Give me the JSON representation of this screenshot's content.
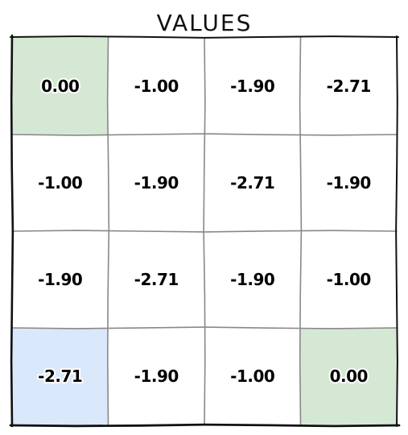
{
  "title": "VALUES",
  "grid": {
    "rows": 4,
    "cols": 4,
    "cells": [
      [
        {
          "value": "0.00",
          "fill": "#d5e8d4"
        },
        {
          "value": "-1.00",
          "fill": "#ffffff"
        },
        {
          "value": "-1.90",
          "fill": "#ffffff"
        },
        {
          "value": "-2.71",
          "fill": "#ffffff"
        }
      ],
      [
        {
          "value": "-1.00",
          "fill": "#ffffff"
        },
        {
          "value": "-1.90",
          "fill": "#ffffff"
        },
        {
          "value": "-2.71",
          "fill": "#ffffff"
        },
        {
          "value": "-1.90",
          "fill": "#ffffff"
        }
      ],
      [
        {
          "value": "-1.90",
          "fill": "#ffffff"
        },
        {
          "value": "-2.71",
          "fill": "#ffffff"
        },
        {
          "value": "-1.90",
          "fill": "#ffffff"
        },
        {
          "value": "-1.00",
          "fill": "#ffffff"
        }
      ],
      [
        {
          "value": "-2.71",
          "fill": "#dae8fc"
        },
        {
          "value": "-1.90",
          "fill": "#ffffff"
        },
        {
          "value": "-1.00",
          "fill": "#ffffff"
        },
        {
          "value": "0.00",
          "fill": "#d5e8d4"
        }
      ]
    ]
  },
  "colors": {
    "goal_cell": "#d5e8d4",
    "start_cell": "#dae8fc",
    "cell": "#ffffff",
    "gridline": "#888888",
    "border": "#111111"
  }
}
